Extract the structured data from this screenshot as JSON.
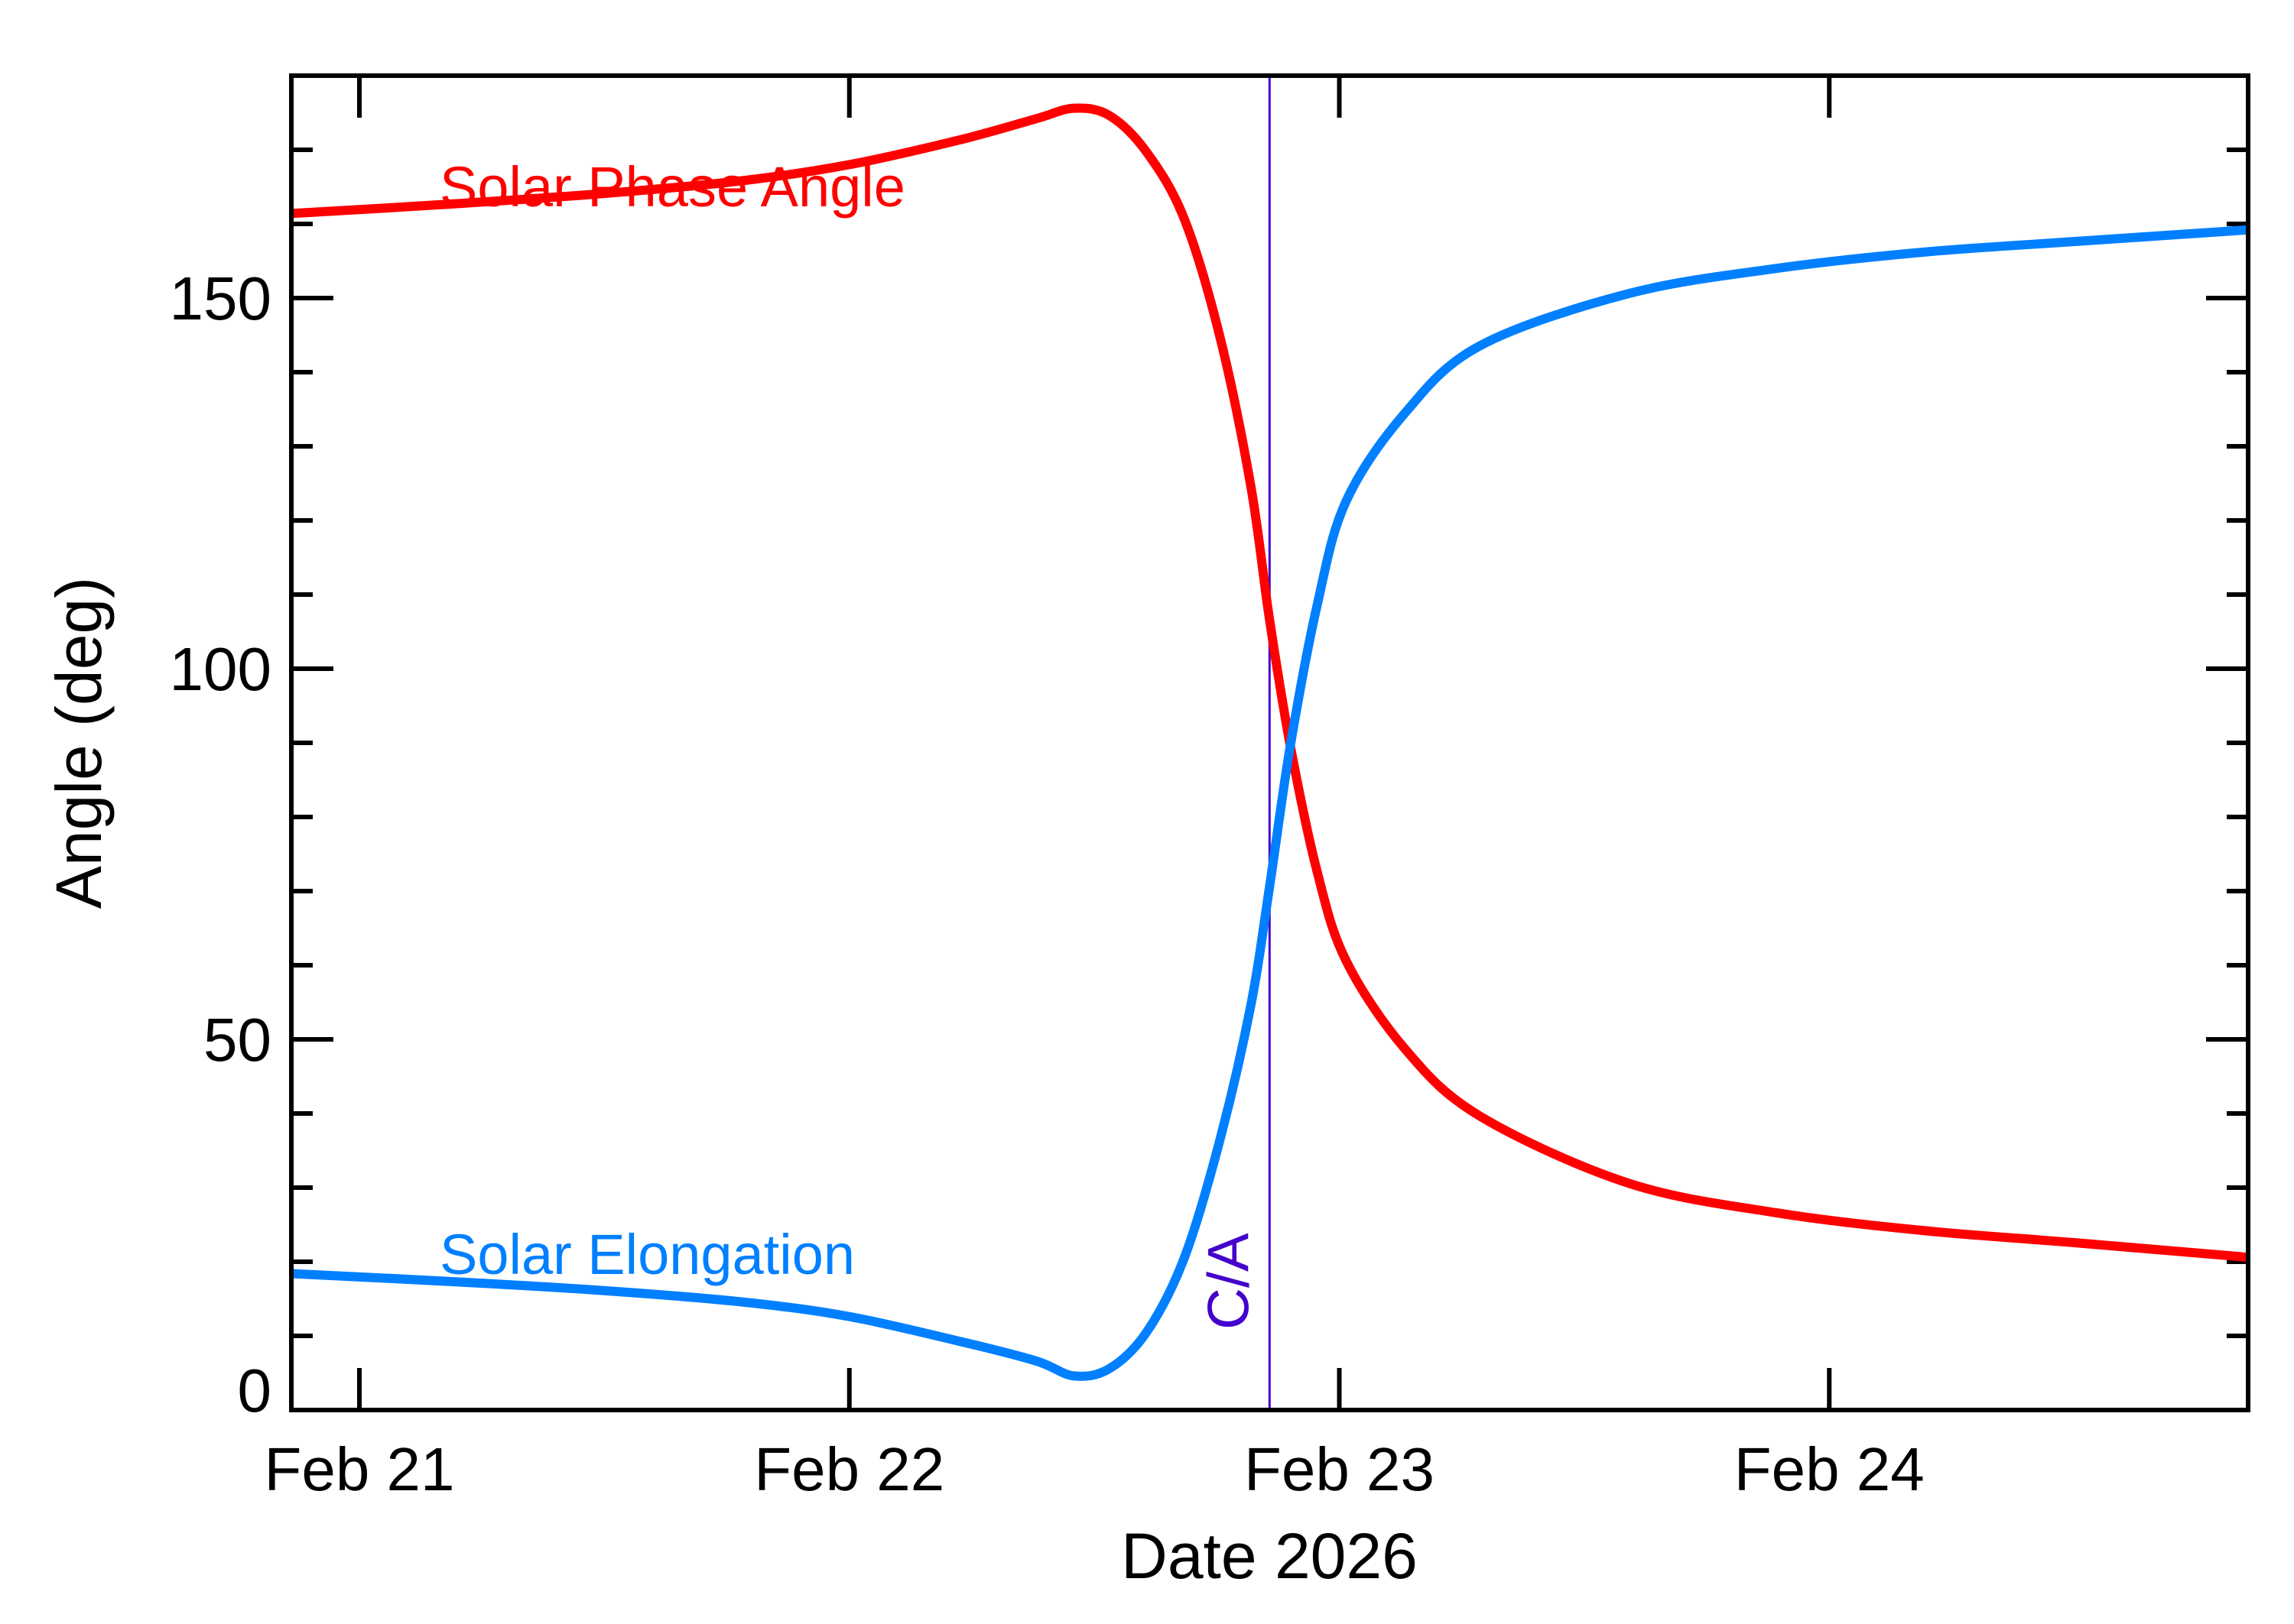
{
  "chart_data": {
    "type": "line",
    "xlabel": "Date 2026",
    "ylabel": "Angle (deg)",
    "xlim": [
      "2026-02-20T20:40",
      "2026-02-24T20:31"
    ],
    "ylim": [
      0,
      180
    ],
    "x_ticks": [
      {
        "date": "2026-02-21T00:00",
        "label": "Feb 21"
      },
      {
        "date": "2026-02-22T00:00",
        "label": "Feb 22"
      },
      {
        "date": "2026-02-23T00:00",
        "label": "Feb 23"
      },
      {
        "date": "2026-02-24T00:00",
        "label": "Feb 24"
      }
    ],
    "y_ticks": [
      0,
      50,
      100,
      150
    ],
    "y_minor_step": 10,
    "grid": false,
    "closest_approach": {
      "date": "2026-02-22T20:35",
      "label": "C/A",
      "color": "#4400cc"
    },
    "series": [
      {
        "name": "Solar Phase Angle",
        "color": "#ff0000",
        "x": [
          "2026-02-20T20:40",
          "2026-02-21T04:00",
          "2026-02-21T11:30",
          "2026-02-21T18:40",
          "2026-02-22T00:00",
          "2026-02-22T05:30",
          "2026-02-22T09:10",
          "2026-02-22T11:00",
          "2026-02-22T12:45",
          "2026-02-22T14:35",
          "2026-02-22T16:25",
          "2026-02-22T18:10",
          "2026-02-22T19:40",
          "2026-02-22T20:35",
          "2026-02-22T21:36",
          "2026-02-22T22:55",
          "2026-02-23T00:20",
          "2026-02-23T03:15",
          "2026-02-23T06:55",
          "2026-02-23T14:10",
          "2026-02-23T21:25",
          "2026-02-24T04:38",
          "2026-02-24T11:53",
          "2026-02-24T20:31"
        ],
        "y": [
          161.4,
          162.6,
          164,
          165.8,
          168,
          171.4,
          174.2,
          175.6,
          174.6,
          169.6,
          160.6,
          144.6,
          124.6,
          106.6,
          89.6,
          72.6,
          60.6,
          48.6,
          39.6,
          30.6,
          26.6,
          24.2,
          22.6,
          20.6
        ]
      },
      {
        "name": "Solar Elongation",
        "color": "#0080ff",
        "x": [
          "2026-02-20T20:40",
          "2026-02-21T04:00",
          "2026-02-21T11:30",
          "2026-02-21T18:40",
          "2026-02-22T00:00",
          "2026-02-22T05:30",
          "2026-02-22T09:10",
          "2026-02-22T11:00",
          "2026-02-22T12:45",
          "2026-02-22T14:35",
          "2026-02-22T16:25",
          "2026-02-22T18:10",
          "2026-02-22T19:40",
          "2026-02-22T20:35",
          "2026-02-22T21:36",
          "2026-02-22T22:55",
          "2026-02-23T00:20",
          "2026-02-23T03:15",
          "2026-02-23T06:55",
          "2026-02-23T14:10",
          "2026-02-23T21:25",
          "2026-02-24T04:38",
          "2026-02-24T11:53",
          "2026-02-24T20:31"
        ],
        "y": [
          18.4,
          17.4,
          16.2,
          14.6,
          12.6,
          9.2,
          6.6,
          4.6,
          5.6,
          10.6,
          20.6,
          36.6,
          54.6,
          70.6,
          89.6,
          108.6,
          122.6,
          134.6,
          143.6,
          150.6,
          154,
          156.2,
          157.6,
          159.2
        ]
      }
    ]
  }
}
